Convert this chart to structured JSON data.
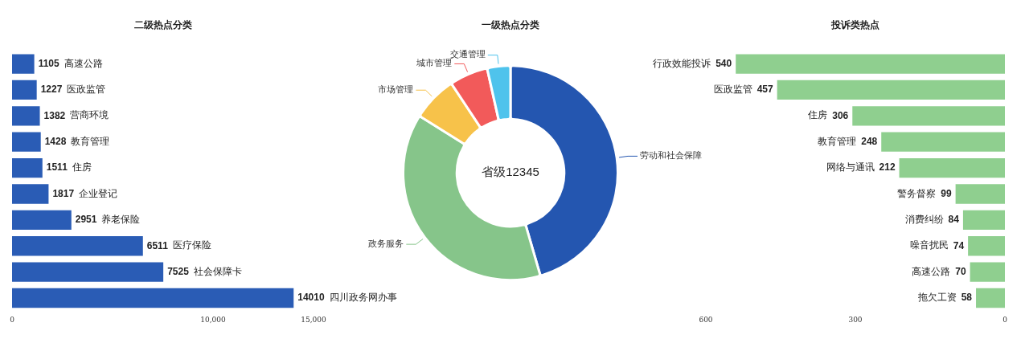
{
  "chart_data": [
    {
      "type": "bar",
      "orientation": "horizontal",
      "title": "二级热点分类",
      "categories": [
        "高速公路",
        "医政监管",
        "营商环境",
        "教育管理",
        "住房",
        "企业登记",
        "养老保险",
        "医疗保险",
        "社会保障卡",
        "四川政务网办事"
      ],
      "values": [
        1105,
        1227,
        1382,
        1428,
        1511,
        1817,
        2951,
        6511,
        7525,
        14010
      ],
      "color": "#2a5cb5",
      "xlim": [
        0,
        15000
      ],
      "xticks": [
        0,
        {
          "value": 10000,
          "label": "10,000"
        },
        {
          "value": 15000,
          "label": "15,000"
        }
      ],
      "data_labels": true,
      "grid": false,
      "legend": false,
      "tick_labels": "x"
    },
    {
      "type": "donut",
      "title": "一级热点分类",
      "categories": [
        "劳动和社会保障",
        "政务服务",
        "市场管理",
        "城市管理",
        "交通管理"
      ],
      "values": [
        45.5,
        38.4,
        6.8,
        5.8,
        3.5
      ],
      "colors": [
        "#2456b0",
        "#86c58a",
        "#f7c24a",
        "#f25a5a",
        "#4fc3ec"
      ],
      "annotations": [
        "省级12345"
      ],
      "legend": false
    },
    {
      "type": "bar",
      "orientation": "horizontal",
      "title": "投诉类热点",
      "categories": [
        "行政效能投诉",
        "医政监管",
        "住房",
        "教育管理",
        "网络与通讯",
        "警务督察",
        "消费纠纷",
        "噪音扰民",
        "高速公路",
        "拖欠工资"
      ],
      "values": [
        540,
        457,
        306,
        248,
        212,
        99,
        84,
        74,
        70,
        58
      ],
      "color": "#8fcf8f",
      "xlim": [
        600,
        0
      ],
      "xticks": [
        600,
        300,
        0
      ],
      "data_labels": true,
      "grid": false,
      "legend": false,
      "tick_labels": "x"
    }
  ]
}
